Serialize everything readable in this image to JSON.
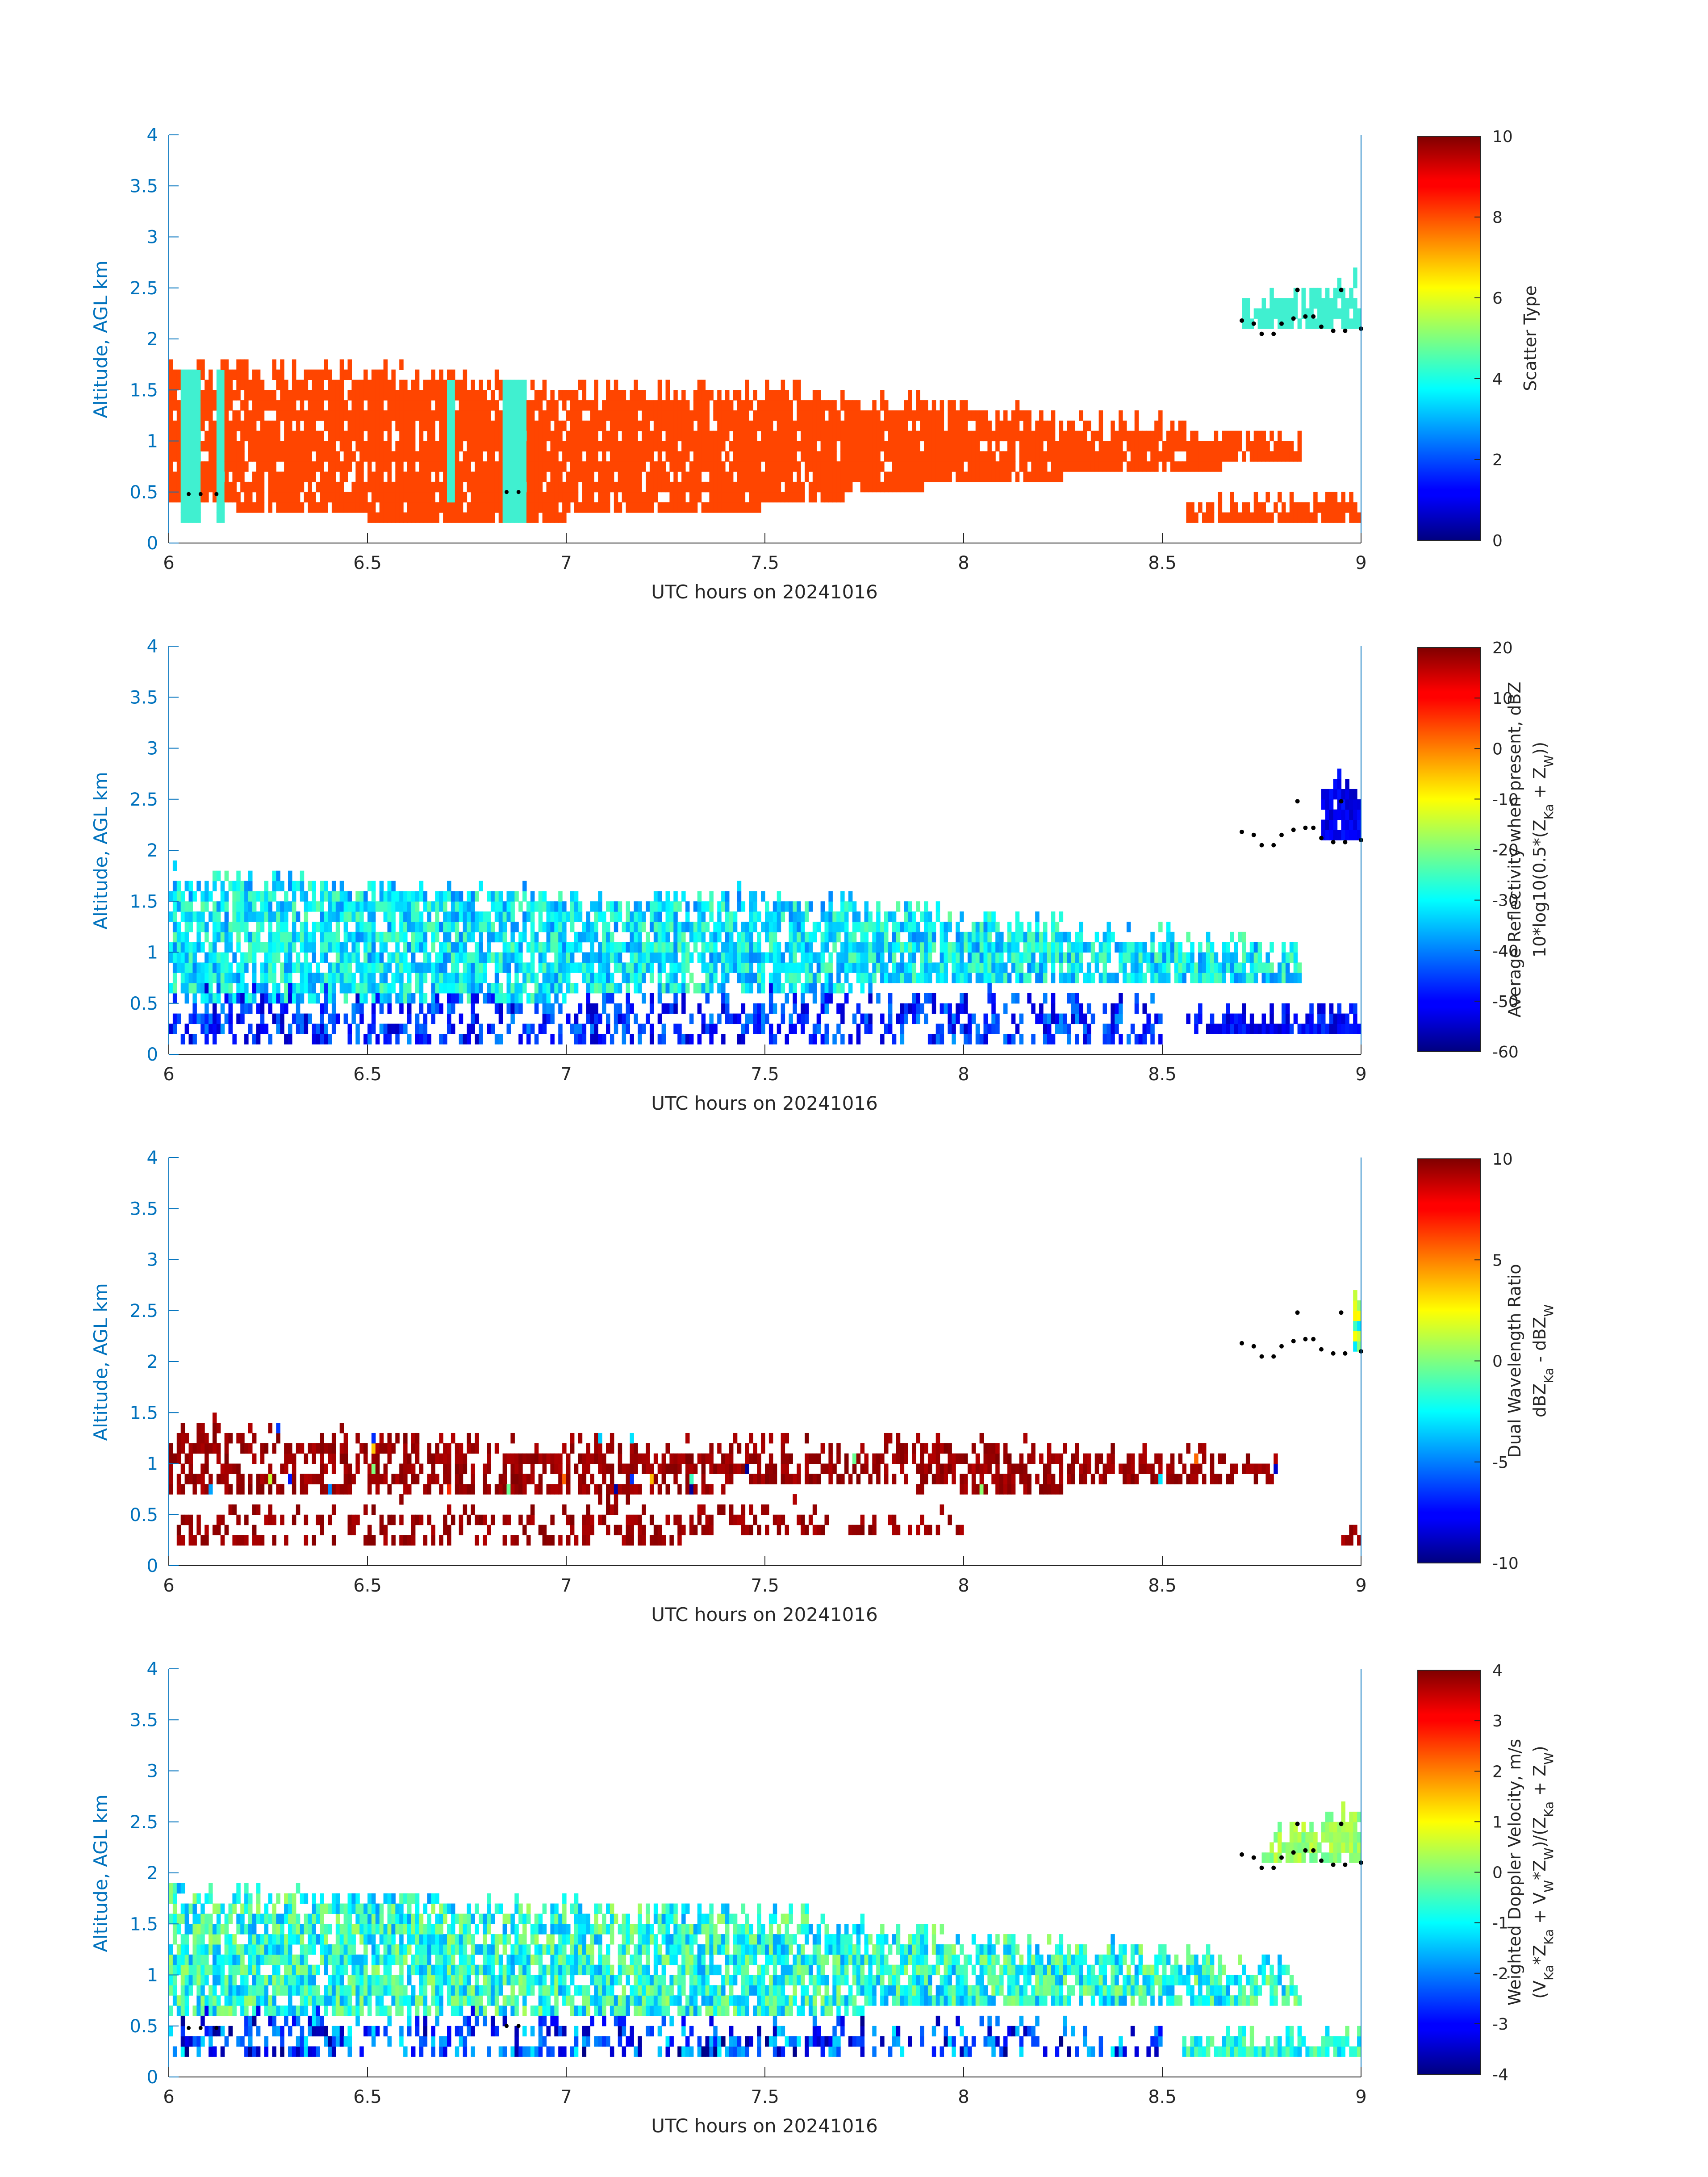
{
  "chart_data": [
    {
      "type": "heatmap",
      "panel": "scatter-type",
      "xlabel": "UTC hours on 20241016",
      "ylabel": "Altitude, AGL km",
      "xlim": [
        6,
        9
      ],
      "ylim": [
        0,
        4
      ],
      "xticks": [
        "6",
        "6.5",
        "7",
        "7.5",
        "8",
        "8.5",
        "9"
      ],
      "yticks": [
        "0",
        "0.5",
        "1",
        "1.5",
        "2",
        "2.5",
        "3",
        "3.5",
        "4"
      ],
      "colorbar": {
        "label_lines": [
          "Scatter Type"
        ],
        "ticks": [
          "0",
          "2",
          "4",
          "6",
          "8",
          "10"
        ],
        "range": [
          0,
          10
        ]
      },
      "layers": [
        {
          "name": "main-cloud",
          "value": 8,
          "color": "#ff4500",
          "profile": [
            [
              6.0,
              0.4,
              1.75
            ],
            [
              6.5,
              0.25,
              1.7
            ],
            [
              7.0,
              0.25,
              1.5
            ],
            [
              7.5,
              0.35,
              1.5
            ],
            [
              8.0,
              0.6,
              1.3
            ],
            [
              8.5,
              0.7,
              1.15
            ],
            [
              8.85,
              0.8,
              1.0
            ]
          ]
        },
        {
          "name": "lower-band",
          "value": 8,
          "color": "#ff4500",
          "profile": [
            [
              8.55,
              0.2,
              0.32
            ],
            [
              9.0,
              0.2,
              0.45
            ]
          ]
        },
        {
          "name": "upper-layer",
          "value": 4,
          "color": "#40f0d0",
          "profile": [
            [
              8.7,
              2.1,
              2.3
            ],
            [
              9.0,
              2.1,
              2.6
            ]
          ]
        },
        {
          "name": "columns",
          "value": 4,
          "color": "#40f0d0",
          "columns": [
            [
              6.03,
              6.08,
              0.2,
              1.7
            ],
            [
              6.12,
              6.14,
              0.2,
              1.7
            ],
            [
              6.7,
              6.72,
              0.4,
              1.6
            ],
            [
              6.84,
              6.9,
              0.2,
              1.65
            ]
          ]
        }
      ]
    },
    {
      "type": "heatmap",
      "panel": "reflectivity",
      "xlabel": "UTC hours on 20241016",
      "ylabel": "Altitude, AGL km",
      "xlim": [
        6,
        9
      ],
      "ylim": [
        0,
        4
      ],
      "xticks": [
        "6",
        "6.5",
        "7",
        "7.5",
        "8",
        "8.5",
        "9"
      ],
      "yticks": [
        "0",
        "0.5",
        "1",
        "1.5",
        "2",
        "2.5",
        "3",
        "3.5",
        "4"
      ],
      "colorbar": {
        "label_lines": [
          "Average Reflectivity when present, dBZ",
          "10*log10(0.5*(Z_Ka + Z_W))"
        ],
        "ticks": [
          "-60",
          "-50",
          "-40",
          "-30",
          "-20",
          "-10",
          "0",
          "10",
          "20"
        ],
        "range": [
          -60,
          20
        ]
      },
      "layers": [
        {
          "name": "main-cloud",
          "range": [
            -40,
            -22
          ],
          "profile": [
            [
              6.0,
              0.55,
              1.75
            ],
            [
              6.5,
              0.55,
              1.65
            ],
            [
              7.0,
              0.55,
              1.5
            ],
            [
              7.5,
              0.6,
              1.55
            ],
            [
              8.0,
              0.7,
              1.35
            ],
            [
              8.5,
              0.7,
              1.15
            ],
            [
              8.85,
              0.75,
              1.0
            ]
          ]
        },
        {
          "name": "lower-speckle",
          "range": [
            -55,
            -38
          ],
          "profile": [
            [
              6.0,
              0.15,
              0.55
            ],
            [
              7.0,
              0.15,
              0.55
            ],
            [
              7.8,
              0.15,
              0.6
            ],
            [
              8.5,
              0.15,
              0.5
            ]
          ]
        },
        {
          "name": "lower-band",
          "range": [
            -55,
            -45
          ],
          "profile": [
            [
              8.55,
              0.18,
              0.32
            ],
            [
              9.0,
              0.18,
              0.45
            ]
          ]
        },
        {
          "name": "upper-layer",
          "range": [
            -55,
            -48
          ],
          "profile": [
            [
              8.9,
              2.1,
              2.65
            ],
            [
              9.0,
              2.1,
              2.65
            ]
          ]
        }
      ]
    },
    {
      "type": "heatmap",
      "panel": "dual-wavelength-ratio",
      "xlabel": "UTC hours on 20241016",
      "ylabel": "Altitude, AGL km",
      "xlim": [
        6,
        9
      ],
      "ylim": [
        0,
        4
      ],
      "xticks": [
        "6",
        "6.5",
        "7",
        "7.5",
        "8",
        "8.5",
        "9"
      ],
      "yticks": [
        "0",
        "0.5",
        "1",
        "1.5",
        "2",
        "2.5",
        "3",
        "3.5",
        "4"
      ],
      "colorbar": {
        "label_lines": [
          "Dual Wavelength Ratio",
          "dBZ_Ka - dBZ_W"
        ],
        "ticks": [
          "-10",
          "-5",
          "0",
          "5",
          "10"
        ],
        "range": [
          -10,
          10
        ]
      },
      "layers": [
        {
          "name": "main-cloud",
          "range": [
            9,
            10
          ],
          "profile": [
            [
              6.0,
              0.65,
              1.4
            ],
            [
              6.5,
              0.7,
              1.25
            ],
            [
              7.0,
              0.7,
              1.2
            ],
            [
              7.3,
              0.7,
              1.15
            ],
            [
              7.6,
              0.85,
              1.2
            ],
            [
              8.0,
              0.7,
              1.2
            ],
            [
              8.5,
              0.8,
              1.1
            ],
            [
              8.8,
              0.85,
              1.0
            ]
          ]
        },
        {
          "name": "lower-speckle",
          "range": [
            9,
            10
          ],
          "profile": [
            [
              6.0,
              0.25,
              0.55
            ],
            [
              7.3,
              0.25,
              0.55
            ],
            [
              8.0,
              0.35,
              0.5
            ]
          ]
        },
        {
          "name": "edge-patch",
          "range": [
            9,
            10
          ],
          "profile": [
            [
              8.95,
              0.25,
              0.4
            ],
            [
              9.0,
              0.25,
              0.4
            ]
          ]
        },
        {
          "name": "upper-layer",
          "range": [
            -3,
            3
          ],
          "profile": [
            [
              8.98,
              2.1,
              2.6
            ],
            [
              9.0,
              2.1,
              2.6
            ]
          ]
        }
      ]
    },
    {
      "type": "heatmap",
      "panel": "doppler-velocity",
      "xlabel": "UTC hours on 20241016",
      "ylabel": "Altitude, AGL km",
      "xlim": [
        6,
        9
      ],
      "ylim": [
        0,
        4
      ],
      "xticks": [
        "6",
        "6.5",
        "7",
        "7.5",
        "8",
        "8.5",
        "9"
      ],
      "yticks": [
        "0",
        "0.5",
        "1",
        "1.5",
        "2",
        "2.5",
        "3",
        "3.5",
        "4"
      ],
      "colorbar": {
        "label_lines": [
          "Weighted Doppler Velocity, m/s",
          "(V_Ka*Z_Ka + V_W*Z_W)/(Z_Ka + Z_W)"
        ],
        "ticks": [
          "-4",
          "-3",
          "-2",
          "-1",
          "0",
          "1",
          "2",
          "3",
          "4"
        ],
        "range": [
          -4,
          4
        ]
      },
      "layers": [
        {
          "name": "main-cloud",
          "range": [
            -1.8,
            0.3
          ],
          "profile": [
            [
              6.0,
              0.6,
              1.8
            ],
            [
              6.5,
              0.6,
              1.75
            ],
            [
              7.0,
              0.55,
              1.65
            ],
            [
              7.5,
              0.6,
              1.6
            ],
            [
              8.0,
              0.7,
              1.35
            ],
            [
              8.5,
              0.7,
              1.2
            ],
            [
              8.85,
              0.75,
              1.05
            ]
          ]
        },
        {
          "name": "lower-speckle",
          "range": [
            -4,
            -1
          ],
          "profile": [
            [
              6.0,
              0.2,
              0.55
            ],
            [
              7.0,
              0.2,
              0.55
            ],
            [
              8.0,
              0.2,
              0.5
            ],
            [
              8.5,
              0.2,
              0.4
            ]
          ]
        },
        {
          "name": "lower-band",
          "range": [
            -1.5,
            0
          ],
          "profile": [
            [
              8.55,
              0.2,
              0.35
            ],
            [
              9.0,
              0.2,
              0.45
            ]
          ]
        },
        {
          "name": "upper-layer",
          "range": [
            -0.2,
            0.6
          ],
          "profile": [
            [
              8.75,
              2.15,
              2.3
            ],
            [
              9.0,
              2.1,
              2.7
            ]
          ]
        }
      ]
    }
  ],
  "cloud_top_dots": [
    [
      8.7,
      2.18
    ],
    [
      8.73,
      2.15
    ],
    [
      8.75,
      2.05
    ],
    [
      8.78,
      2.05
    ],
    [
      8.8,
      2.15
    ],
    [
      8.83,
      2.2
    ],
    [
      8.86,
      2.22
    ],
    [
      8.88,
      2.22
    ],
    [
      8.9,
      2.12
    ],
    [
      8.93,
      2.08
    ],
    [
      8.96,
      2.08
    ],
    [
      9.0,
      2.1
    ],
    [
      8.84,
      2.48
    ],
    [
      8.95,
      2.48
    ]
  ],
  "low_dots": [
    [
      6.05,
      0.48
    ],
    [
      6.08,
      0.48
    ],
    [
      6.12,
      0.48
    ],
    [
      6.85,
      0.5
    ],
    [
      6.88,
      0.5
    ]
  ]
}
